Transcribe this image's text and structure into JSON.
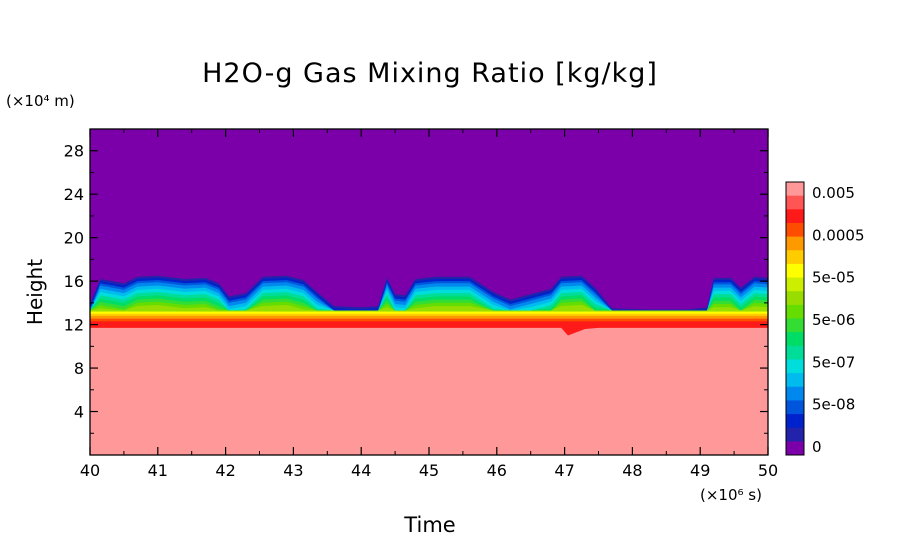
{
  "chart_data": {
    "type": "heatmap",
    "subtype": "filled-contour",
    "title": "H2O-g Gas Mixing Ratio [kg/kg]",
    "xlabel": "Time",
    "ylabel": "Height",
    "x_unit_label": "(×10⁶ s)",
    "y_unit_label": "(×10⁴ m)",
    "xlim": [
      40,
      50
    ],
    "ylim": [
      0,
      30
    ],
    "x_ticks": [
      40,
      41,
      42,
      43,
      44,
      45,
      46,
      47,
      48,
      49,
      50
    ],
    "y_ticks": [
      4,
      8,
      12,
      16,
      20,
      24,
      28
    ],
    "colorbar": {
      "labels": [
        "0.005",
        "0.0005",
        "5e-05",
        "5e-06",
        "5e-07",
        "5e-08",
        "0"
      ],
      "colors": [
        "#ff9999",
        "#ff5555",
        "#ff1a1a",
        "#ff4d00",
        "#ff9900",
        "#ffcc00",
        "#ffff00",
        "#ccee00",
        "#99dd00",
        "#66dd00",
        "#33dd33",
        "#00dd66",
        "#00dd99",
        "#00dddd",
        "#00bbee",
        "#0088ee",
        "#0055dd",
        "#0022cc",
        "#2222aa",
        "#7b00aa"
      ]
    },
    "fields": {
      "background_color": "#7b00aa",
      "saturated_color": "#ff9999",
      "saturated_top_height": 11.7,
      "red_layer_top_height": 12.3,
      "orange_layer_top_height": 12.8,
      "yellow_layer_top_height": 13.2,
      "moist_top_profile": [
        [
          40.0,
          13.9
        ],
        [
          40.15,
          16.2
        ],
        [
          40.5,
          15.8
        ],
        [
          40.7,
          16.4
        ],
        [
          41.0,
          16.5
        ],
        [
          41.4,
          16.2
        ],
        [
          41.7,
          16.3
        ],
        [
          41.9,
          15.8
        ],
        [
          42.05,
          14.6
        ],
        [
          42.3,
          14.9
        ],
        [
          42.55,
          16.4
        ],
        [
          42.9,
          16.5
        ],
        [
          43.15,
          16.1
        ],
        [
          43.35,
          15.0
        ],
        [
          43.6,
          13.7
        ],
        [
          44.0,
          13.6
        ],
        [
          44.25,
          13.7
        ],
        [
          44.38,
          16.3
        ],
        [
          44.5,
          14.8
        ],
        [
          44.65,
          14.7
        ],
        [
          44.8,
          16.2
        ],
        [
          45.1,
          16.4
        ],
        [
          45.6,
          16.4
        ],
        [
          45.95,
          15.0
        ],
        [
          46.2,
          14.3
        ],
        [
          46.5,
          14.8
        ],
        [
          46.8,
          15.3
        ],
        [
          46.95,
          16.4
        ],
        [
          47.25,
          16.5
        ],
        [
          47.45,
          15.4
        ],
        [
          47.7,
          13.5
        ],
        [
          48.2,
          13.4
        ],
        [
          48.8,
          13.4
        ],
        [
          49.1,
          13.6
        ],
        [
          49.2,
          16.3
        ],
        [
          49.45,
          16.3
        ],
        [
          49.6,
          15.4
        ],
        [
          49.8,
          16.4
        ],
        [
          50.0,
          16.3
        ]
      ],
      "saturated_profile": [
        [
          40.0,
          11.7
        ],
        [
          46.95,
          11.7
        ],
        [
          47.05,
          11.0
        ],
        [
          47.3,
          11.6
        ],
        [
          47.5,
          11.7
        ],
        [
          50.0,
          11.7
        ]
      ]
    }
  }
}
